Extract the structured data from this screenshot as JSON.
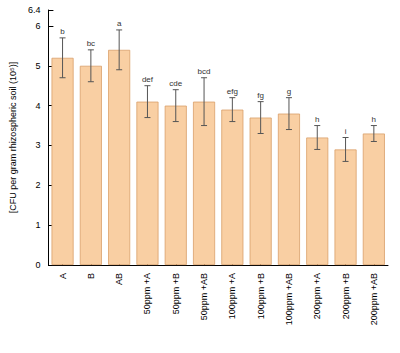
{
  "chart_data": {
    "type": "bar",
    "y_label": "[CFU per gram rhizospheric soil (10⁵)]",
    "categories": [
      "A",
      "B",
      "AB",
      "50ppm +A",
      "50ppm +B",
      "50ppm +AB",
      "100ppm +A",
      "100ppm +B",
      "100ppm +AB",
      "200ppm +A",
      "200ppm +B",
      "200ppm +AB"
    ],
    "values": [
      5.2,
      5.0,
      5.4,
      4.1,
      4.0,
      4.1,
      3.9,
      3.7,
      3.8,
      3.2,
      2.9,
      3.3
    ],
    "errors": [
      0.5,
      0.4,
      0.5,
      0.4,
      0.4,
      0.6,
      0.3,
      0.4,
      0.4,
      0.3,
      0.3,
      0.2
    ],
    "annotations": [
      "b",
      "bc",
      "a",
      "def",
      "cde",
      "bcd",
      "efg",
      "fg",
      "g",
      "h",
      "i",
      "h"
    ],
    "color": "#f9cfa3",
    "ylim": [
      0,
      6.4
    ],
    "yticks": [
      0,
      1,
      2,
      3,
      4,
      5,
      6
    ],
    "grid": false
  }
}
